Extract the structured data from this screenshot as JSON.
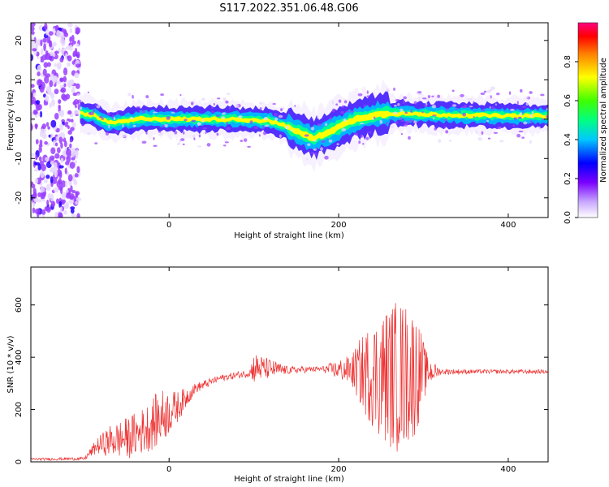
{
  "title": "S117.2022.351.06.48.G06",
  "chart_data": [
    {
      "type": "heatmap",
      "title": "S117.2022.351.06.48.G06",
      "xlabel": "Height of straight line (km)",
      "ylabel": "Frequency (Hz)",
      "xlim": [
        -163,
        447
      ],
      "ylim": [
        -25,
        24.5
      ],
      "x_ticks": [
        0,
        200,
        400
      ],
      "y_ticks": [
        -20,
        -10,
        0,
        10,
        20
      ],
      "grid": false,
      "colorbar": {
        "label": "Normalized spectral amplitude",
        "range": [
          0,
          1
        ],
        "ticks": [
          0.0,
          0.2,
          0.4,
          0.6,
          0.8
        ]
      },
      "ridge": {
        "x": [
          -105,
          -90,
          -70,
          -50,
          -30,
          0,
          40,
          80,
          120,
          140,
          160,
          170,
          180,
          200,
          220,
          240,
          260,
          300,
          350,
          400,
          447
        ],
        "y": [
          1.5,
          1.0,
          -1.0,
          -0.5,
          0.2,
          0.0,
          0.0,
          0.0,
          -0.5,
          -2.0,
          -4.0,
          -5.0,
          -4.0,
          -2.0,
          0.0,
          1.0,
          1.5,
          1.2,
          1.0,
          0.8,
          0.8
        ]
      }
    },
    {
      "type": "line",
      "title": "",
      "xlabel": "Height of straight line (km)",
      "ylabel": "SNR (10 * v/v)",
      "xlim": [
        -163,
        447
      ],
      "ylim": [
        0,
        745
      ],
      "x_ticks": [
        0,
        200,
        400
      ],
      "y_ticks": [
        0,
        200,
        400,
        600
      ],
      "grid": false,
      "series": [
        {
          "color": "#ee3333",
          "envelope": {
            "x": [
              -163,
              -100,
              -85,
              -70,
              -50,
              -30,
              -10,
              10,
              30,
              60,
              95,
              100,
              140,
              180,
              215,
              230,
              250,
              270,
              290,
              305,
              320,
              360,
              400,
              447
            ],
            "base": [
              10,
              12,
              60,
              80,
              90,
              120,
              170,
              210,
              280,
              320,
              340,
              360,
              350,
              355,
              350,
              340,
              330,
              330,
              340,
              345,
              345,
              345,
              345,
              345
            ],
            "spread": [
              5,
              6,
              30,
              60,
              80,
              90,
              110,
              60,
              20,
              12,
              15,
              60,
              15,
              10,
              60,
              160,
              250,
              300,
              250,
              60,
              12,
              8,
              8,
              8
            ]
          }
        }
      ]
    }
  ],
  "colors": {
    "snr_line": "#ee3333",
    "colorbar": [
      "#ffffff",
      "#8a00ff",
      "#0000ff",
      "#00ffff",
      "#00ff00",
      "#ffff00",
      "#ff8800",
      "#ff0000",
      "#ff0088"
    ]
  }
}
